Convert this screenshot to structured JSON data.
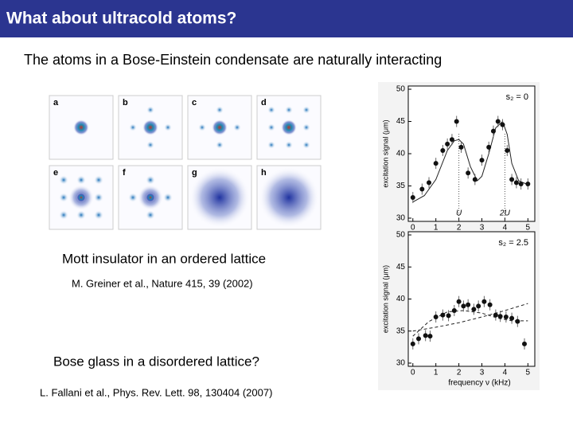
{
  "header": {
    "title": "What about ultracold atoms?"
  },
  "subtitle": "The atoms in a Bose-Einstein condensate are naturally interacting",
  "panels": {
    "labels": [
      "a",
      "b",
      "c",
      "d",
      "e",
      "f",
      "g",
      "h"
    ]
  },
  "captions": [
    "Mott insulator in an ordered lattice",
    "M. Greiner et al., Nature 415, 39 (2002)",
    "Bose glass in a disordered lattice?",
    "L. Fallani et al., Phys. Rev. Lett. 98, 130404 (2007)"
  ],
  "chart_data": [
    {
      "type": "scatter",
      "y_label": "excitation signal (μm)",
      "annotation": "s₂ = 0",
      "x": [
        0,
        0.4,
        0.7,
        1.0,
        1.3,
        1.5,
        1.7,
        1.9,
        2.1,
        2.4,
        2.7,
        3.0,
        3.3,
        3.5,
        3.7,
        3.9,
        4.1,
        4.3,
        4.5,
        4.7,
        5.0
      ],
      "values": [
        33.2,
        34.5,
        35.5,
        38.5,
        40.5,
        41.5,
        42.2,
        45.0,
        41.0,
        37.0,
        36.0,
        39.0,
        41.0,
        43.5,
        45.0,
        44.5,
        40.5,
        36.0,
        35.5,
        35.3,
        35.3
      ],
      "fit": {
        "x": [
          0,
          0.5,
          1.0,
          1.5,
          1.8,
          2.0,
          2.2,
          2.5,
          2.8,
          3.0,
          3.3,
          3.6,
          3.9,
          4.1,
          4.3,
          4.6,
          5.0
        ],
        "values": [
          32.5,
          33.5,
          36.0,
          40.5,
          42.0,
          42.2,
          41.5,
          38.0,
          35.8,
          36.5,
          40.0,
          44.0,
          45.0,
          43.0,
          38.5,
          35.8,
          35.2
        ]
      },
      "vlines": [
        {
          "x": 2,
          "label": "U"
        },
        {
          "x": 4,
          "label": "2U"
        }
      ],
      "xlim": [
        -0.2,
        5.3
      ],
      "ylim": [
        29.5,
        50.5
      ],
      "xticks": [
        0,
        1,
        2,
        3,
        4,
        5
      ],
      "yticks": [
        30,
        35,
        40,
        45,
        50
      ],
      "color": "#111111"
    },
    {
      "type": "scatter",
      "y_label": "excitation signal (μm)",
      "x_label": "frequency ν (kHz)",
      "annotation": "s₂ = 2.5",
      "x": [
        0,
        0.25,
        0.55,
        0.75,
        1.0,
        1.3,
        1.55,
        1.8,
        2.0,
        2.2,
        2.4,
        2.65,
        2.85,
        3.1,
        3.35,
        3.6,
        3.8,
        4.05,
        4.3,
        4.55,
        4.85
      ],
      "values": [
        33.0,
        33.8,
        34.3,
        34.2,
        37.2,
        37.5,
        37.4,
        38.2,
        39.6,
        38.9,
        39.1,
        38.4,
        38.9,
        39.6,
        39.1,
        37.5,
        37.3,
        37.2,
        37.0,
        36.5,
        33.0
      ],
      "fits": [
        {
          "x": [
            0,
            1,
            2,
            3,
            4,
            5
          ],
          "values": [
            35.0,
            35.6,
            36.3,
            37.2,
            38.2,
            39.3
          ]
        },
        {
          "x": [
            0,
            0.7,
            1.5,
            2.2,
            3.0,
            3.7,
            4.3,
            5.0
          ],
          "values": [
            34.2,
            36.5,
            38.0,
            38.2,
            37.8,
            37.0,
            36.6,
            36.6
          ]
        }
      ],
      "xlim": [
        -0.2,
        5.3
      ],
      "ylim": [
        29.5,
        50.5
      ],
      "xticks": [
        0,
        1,
        2,
        3,
        4,
        5
      ],
      "yticks": [
        30,
        35,
        40,
        45,
        50
      ],
      "color": "#111111"
    }
  ]
}
